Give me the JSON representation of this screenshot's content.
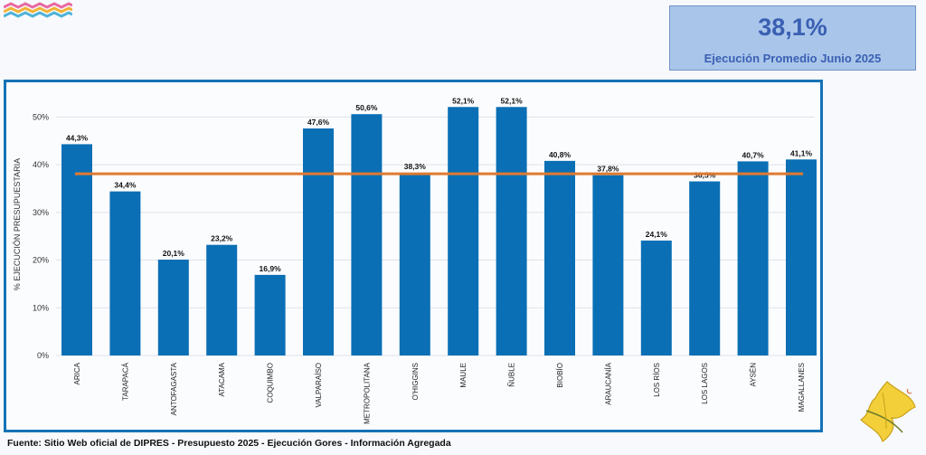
{
  "kpi": {
    "value": "38,1%",
    "label": "Ejecución Promedio Junio 2025"
  },
  "footer": {
    "source": "Fuente: Sitio Web oficial de DIPRES - Presupuesto 2025 - Ejecución Gores - Información Agregada"
  },
  "colors": {
    "bar": "#0a6fb5",
    "average_line": "#e07a30",
    "frame": "#1572b6",
    "kpi_bg": "#a9c6ea",
    "kpi_text": "#3a5fb3"
  },
  "icons": {
    "top_decoration": "zigzag-decoration-icon",
    "bottom_decoration": "leaf-decoration-icon"
  },
  "chart_data": {
    "type": "bar",
    "ylabel": "% EJECUCIÓN PRESUPUESTARIA",
    "ylim": [
      0,
      55
    ],
    "yticks": [
      0,
      10,
      20,
      30,
      40,
      50
    ],
    "ytick_labels": [
      "0%",
      "10%",
      "20%",
      "30%",
      "40%",
      "50%"
    ],
    "grid": true,
    "categories": [
      "ARICA",
      "TARAPACÁ",
      "ANTOFAGASTA",
      "ATACAMA",
      "COQUIMBO",
      "VALPARAÍSO",
      "METROPOLITANA",
      "O'HIGGINS",
      "MAULE",
      "ÑUBLE",
      "BIOBÍO",
      "ARAUCANÍA",
      "LOS RÍOS",
      "LOS LAGOS",
      "AYSÉN",
      "MAGALLANES"
    ],
    "values": [
      44.3,
      34.4,
      20.1,
      23.2,
      16.9,
      47.6,
      50.6,
      38.3,
      52.1,
      52.1,
      40.8,
      37.8,
      24.1,
      36.5,
      40.7,
      41.1
    ],
    "value_labels": [
      "44,3%",
      "34,4%",
      "20,1%",
      "23,2%",
      "16,9%",
      "47,6%",
      "50,6%",
      "38,3%",
      "52,1%",
      "52,1%",
      "40,8%",
      "37,8%",
      "24,1%",
      "36,5%",
      "40,7%",
      "41,1%"
    ],
    "average": 38.1
  }
}
